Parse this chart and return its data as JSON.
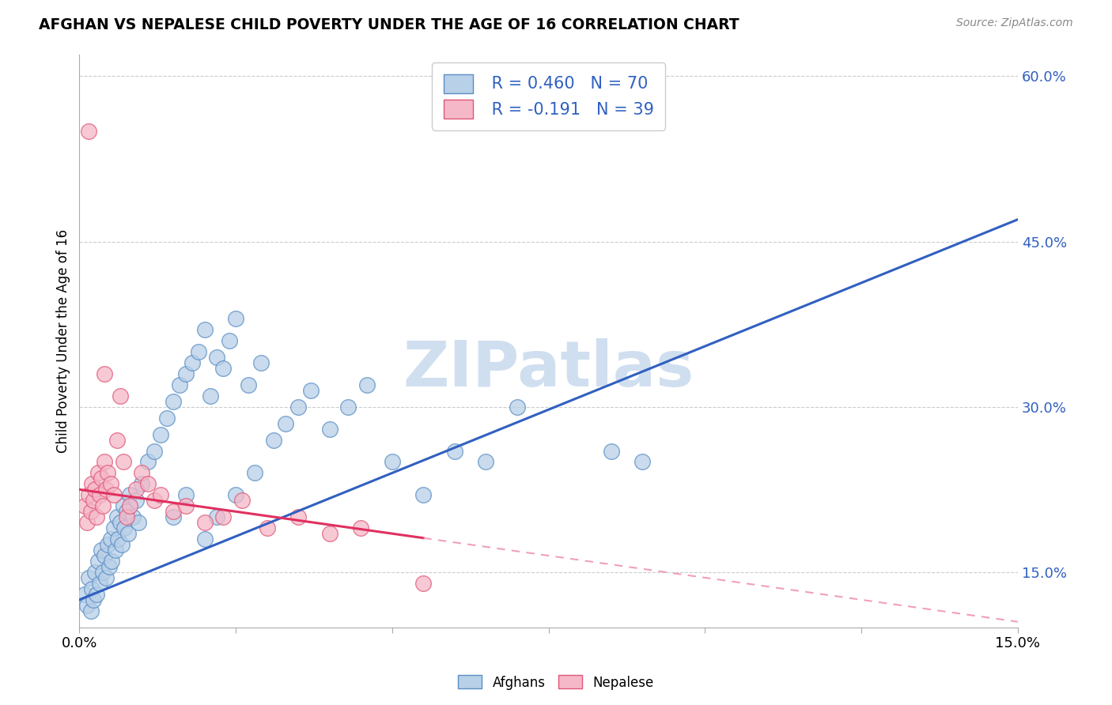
{
  "title": "AFGHAN VS NEPALESE CHILD POVERTY UNDER THE AGE OF 16 CORRELATION CHART",
  "source": "Source: ZipAtlas.com",
  "ylabel": "Child Poverty Under the Age of 16",
  "xlim": [
    0.0,
    15.0
  ],
  "ylim": [
    10.0,
    62.0
  ],
  "y_ticks": [
    15.0,
    30.0,
    45.0,
    60.0
  ],
  "afghan_color": "#b8d0e8",
  "afghan_edge_color": "#5b8ec4",
  "nepalese_color": "#f5b8c8",
  "nepalese_edge_color": "#e05878",
  "afghan_line_color": "#3060c0",
  "nepalese_line_color": "#e03060",
  "nepalese_dash_color": "#f0a0b8",
  "background_color": "#ffffff",
  "grid_color": "#cccccc",
  "watermark": "ZIPatlas",
  "watermark_color": "#d0dff0",
  "legend_text_color": "#3060c0",
  "legend_r_afghan": "R = 0.460",
  "legend_n_afghan": "N = 70",
  "legend_r_nepalese": "R = -0.191",
  "legend_n_nepalese": "N = 39",
  "afghan_line_x0": 0.0,
  "afghan_line_y0": 12.5,
  "afghan_line_x1": 15.0,
  "afghan_line_y1": 47.0,
  "nepalese_line_x0": 0.0,
  "nepalese_line_y0": 22.5,
  "nepalese_line_x1": 15.0,
  "nepalese_line_y1": 10.5,
  "nepalese_solid_end": 5.5,
  "afghan_x": [
    0.08,
    0.12,
    0.15,
    0.18,
    0.2,
    0.22,
    0.25,
    0.28,
    0.3,
    0.32,
    0.35,
    0.38,
    0.4,
    0.42,
    0.45,
    0.48,
    0.5,
    0.52,
    0.55,
    0.58,
    0.6,
    0.62,
    0.65,
    0.68,
    0.7,
    0.72,
    0.75,
    0.78,
    0.8,
    0.85,
    0.9,
    0.95,
    1.0,
    1.1,
    1.2,
    1.3,
    1.4,
    1.5,
    1.6,
    1.7,
    1.8,
    1.9,
    2.0,
    2.1,
    2.2,
    2.3,
    2.4,
    2.5,
    2.7,
    2.9,
    3.1,
    3.3,
    3.5,
    3.7,
    4.0,
    4.3,
    4.6,
    5.0,
    5.5,
    6.0,
    6.5,
    7.0,
    8.5,
    9.0,
    1.5,
    1.7,
    2.0,
    2.2,
    2.5,
    2.8
  ],
  "afghan_y": [
    13.0,
    12.0,
    14.5,
    11.5,
    13.5,
    12.5,
    15.0,
    13.0,
    16.0,
    14.0,
    17.0,
    15.0,
    16.5,
    14.5,
    17.5,
    15.5,
    18.0,
    16.0,
    19.0,
    17.0,
    20.0,
    18.0,
    19.5,
    17.5,
    21.0,
    19.0,
    20.5,
    18.5,
    22.0,
    20.0,
    21.5,
    19.5,
    23.0,
    25.0,
    26.0,
    27.5,
    29.0,
    30.5,
    32.0,
    33.0,
    34.0,
    35.0,
    37.0,
    31.0,
    34.5,
    33.5,
    36.0,
    38.0,
    32.0,
    34.0,
    27.0,
    28.5,
    30.0,
    31.5,
    28.0,
    30.0,
    32.0,
    25.0,
    22.0,
    26.0,
    25.0,
    30.0,
    26.0,
    25.0,
    20.0,
    22.0,
    18.0,
    20.0,
    22.0,
    24.0
  ],
  "nepalese_x": [
    0.08,
    0.12,
    0.15,
    0.18,
    0.2,
    0.22,
    0.25,
    0.28,
    0.3,
    0.32,
    0.35,
    0.38,
    0.4,
    0.42,
    0.45,
    0.5,
    0.55,
    0.6,
    0.65,
    0.7,
    0.75,
    0.8,
    0.9,
    1.0,
    1.1,
    1.2,
    1.3,
    1.5,
    1.7,
    2.0,
    2.3,
    2.6,
    3.0,
    3.5,
    4.0,
    4.5,
    5.5,
    0.15,
    0.4
  ],
  "nepalese_y": [
    21.0,
    19.5,
    22.0,
    20.5,
    23.0,
    21.5,
    22.5,
    20.0,
    24.0,
    22.0,
    23.5,
    21.0,
    25.0,
    22.5,
    24.0,
    23.0,
    22.0,
    27.0,
    31.0,
    25.0,
    20.0,
    21.0,
    22.5,
    24.0,
    23.0,
    21.5,
    22.0,
    20.5,
    21.0,
    19.5,
    20.0,
    21.5,
    19.0,
    20.0,
    18.5,
    19.0,
    14.0,
    55.0,
    33.0
  ]
}
